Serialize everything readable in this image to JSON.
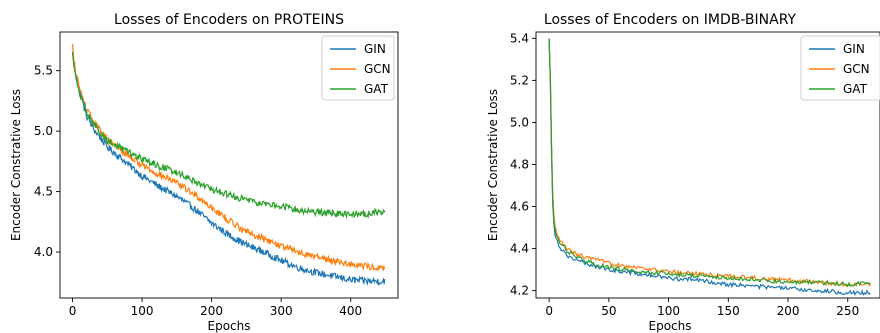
{
  "chart_data": [
    {
      "type": "line",
      "title": "Losses of Encoders on PROTEINS",
      "xlabel": "Epochs",
      "ylabel": "Encoder Constrative Loss",
      "xlim": [
        -18,
        468
      ],
      "ylim": [
        3.62,
        5.82
      ],
      "xticks": [
        0,
        100,
        200,
        300,
        400
      ],
      "yticks": [
        4.0,
        4.5,
        5.0,
        5.5
      ],
      "ytick_labels": [
        "4.0",
        "4.5",
        "5.0",
        "5.5"
      ],
      "legend": "top-right",
      "grid": false,
      "n_epochs": 450,
      "series": [
        {
          "name": "GIN",
          "color": "#1f77b4",
          "x": [
            0,
            2,
            5,
            10,
            20,
            30,
            50,
            75,
            100,
            125,
            150,
            175,
            200,
            225,
            250,
            275,
            300,
            325,
            350,
            375,
            400,
            425,
            449
          ],
          "y": [
            5.66,
            5.55,
            5.45,
            5.33,
            5.13,
            5.02,
            4.87,
            4.75,
            4.63,
            4.54,
            4.46,
            4.36,
            4.24,
            4.14,
            4.06,
            4.0,
            3.93,
            3.87,
            3.83,
            3.8,
            3.77,
            3.76,
            3.76
          ]
        },
        {
          "name": "GCN",
          "color": "#ff7f0e",
          "x": [
            0,
            2,
            5,
            10,
            20,
            30,
            50,
            75,
            100,
            125,
            150,
            175,
            200,
            225,
            250,
            275,
            300,
            325,
            350,
            375,
            400,
            425,
            449
          ],
          "y": [
            5.72,
            5.58,
            5.48,
            5.36,
            5.18,
            5.08,
            4.93,
            4.82,
            4.72,
            4.64,
            4.57,
            4.48,
            4.37,
            4.26,
            4.17,
            4.11,
            4.05,
            4.0,
            3.96,
            3.93,
            3.9,
            3.88,
            3.86
          ]
        },
        {
          "name": "GAT",
          "color": "#2ca02c",
          "x": [
            0,
            2,
            5,
            10,
            20,
            30,
            50,
            75,
            100,
            125,
            150,
            175,
            200,
            225,
            250,
            275,
            300,
            325,
            350,
            375,
            400,
            425,
            449
          ],
          "y": [
            5.65,
            5.54,
            5.44,
            5.32,
            5.16,
            5.06,
            4.92,
            4.84,
            4.77,
            4.71,
            4.66,
            4.59,
            4.52,
            4.47,
            4.43,
            4.4,
            4.38,
            4.35,
            4.33,
            4.32,
            4.31,
            4.32,
            4.34
          ]
        }
      ]
    },
    {
      "type": "line",
      "title": "Losses of Encoders on IMDB-BINARY",
      "xlabel": "Epochs",
      "ylabel": "Encoder Constrative Loss",
      "xlim": [
        -11,
        277
      ],
      "ylim": [
        4.165,
        5.43
      ],
      "xticks": [
        0,
        50,
        100,
        150,
        200,
        250
      ],
      "yticks": [
        4.2,
        4.4,
        4.6,
        4.8,
        5.0,
        5.2,
        5.4
      ],
      "ytick_labels": [
        "4.2",
        "4.4",
        "4.6",
        "4.8",
        "5.0",
        "5.2",
        "5.4"
      ],
      "legend": "top-right",
      "grid": false,
      "n_epochs": 270,
      "series": [
        {
          "name": "GIN",
          "color": "#1f77b4",
          "x": [
            0,
            1,
            2,
            3,
            4,
            5,
            7,
            10,
            15,
            20,
            30,
            50,
            75,
            100,
            125,
            150,
            175,
            200,
            225,
            250,
            269
          ],
          "y": [
            5.4,
            5.2,
            4.85,
            4.62,
            4.52,
            4.47,
            4.43,
            4.4,
            4.37,
            4.35,
            4.33,
            4.3,
            4.28,
            4.26,
            4.25,
            4.23,
            4.22,
            4.21,
            4.2,
            4.19,
            4.19
          ]
        },
        {
          "name": "GCN",
          "color": "#ff7f0e",
          "x": [
            0,
            1,
            2,
            3,
            4,
            5,
            7,
            10,
            15,
            20,
            30,
            50,
            75,
            100,
            125,
            150,
            175,
            200,
            225,
            250,
            269
          ],
          "y": [
            5.37,
            5.22,
            4.9,
            4.66,
            4.55,
            4.5,
            4.46,
            4.43,
            4.4,
            4.38,
            4.36,
            4.33,
            4.31,
            4.29,
            4.28,
            4.27,
            4.26,
            4.25,
            4.24,
            4.23,
            4.23
          ]
        },
        {
          "name": "GAT",
          "color": "#2ca02c",
          "x": [
            0,
            1,
            2,
            3,
            4,
            5,
            7,
            10,
            15,
            20,
            30,
            50,
            75,
            100,
            125,
            150,
            175,
            200,
            225,
            250,
            269
          ],
          "y": [
            5.39,
            5.21,
            4.88,
            4.64,
            4.53,
            4.49,
            4.45,
            4.42,
            4.39,
            4.37,
            4.34,
            4.31,
            4.29,
            4.28,
            4.27,
            4.26,
            4.25,
            4.24,
            4.24,
            4.23,
            4.24
          ]
        }
      ]
    }
  ]
}
